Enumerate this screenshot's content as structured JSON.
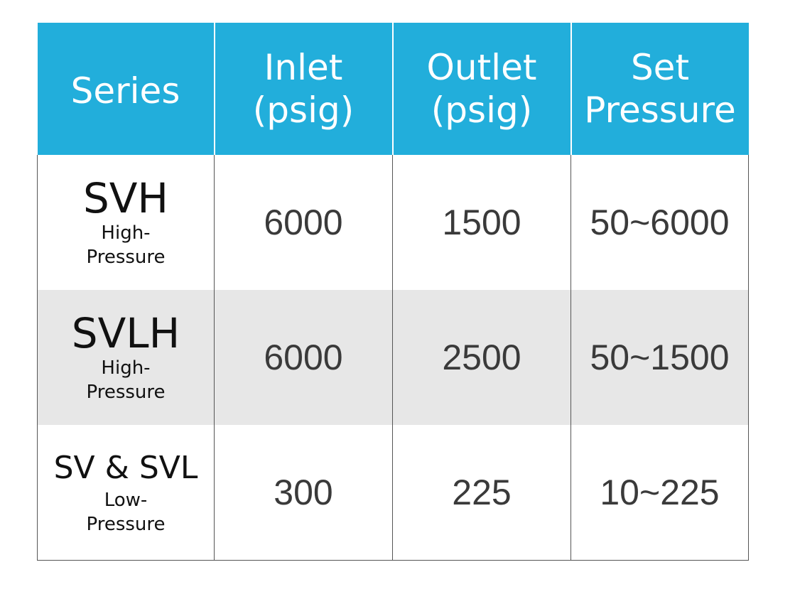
{
  "header": {
    "series": "Series",
    "inlet_line1": "Inlet",
    "inlet_line2": "(psig)",
    "outlet_line1": "Outlet",
    "outlet_line2": "(psig)",
    "set_line1": "Set",
    "set_line2": "Pressure"
  },
  "rows": [
    {
      "series": "SVH",
      "sub1": "High-",
      "sub2": "Pressure",
      "inlet": "6000",
      "outlet": "1500",
      "set_pressure": "50~6000"
    },
    {
      "series": "SVLH",
      "sub1": "High-",
      "sub2": "Pressure",
      "inlet": "6000",
      "outlet": "2500",
      "set_pressure": "50~1500"
    },
    {
      "series": "SV & SVL",
      "sub1": "Low-",
      "sub2": "Pressure",
      "inlet": "300",
      "outlet": "225",
      "set_pressure": "10~225"
    }
  ],
  "colors": {
    "header_bg": "#22aedb",
    "header_text": "#ffffff",
    "shaded_row": "#e7e7e7",
    "grid_line": "#555555"
  }
}
